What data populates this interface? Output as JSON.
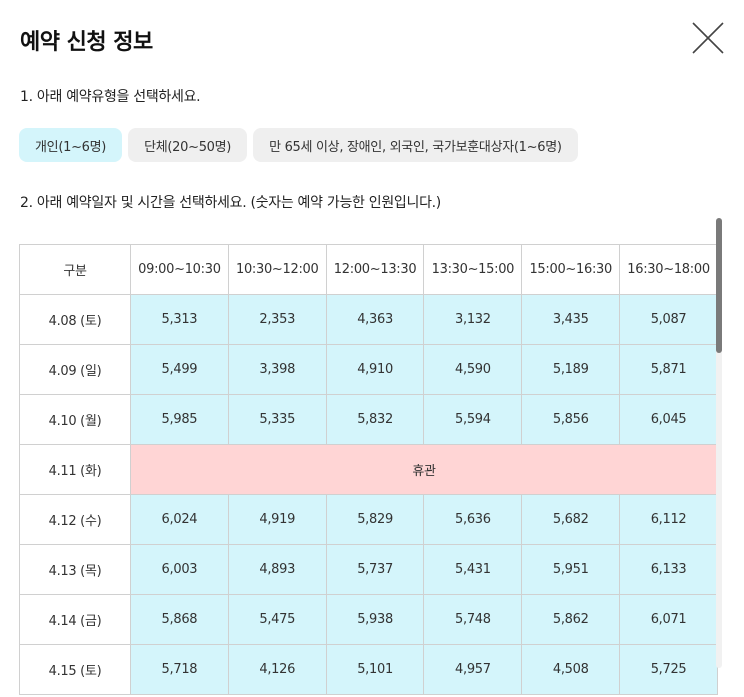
{
  "modal": {
    "title": "예약 신청 정보",
    "close_icon": "close-icon"
  },
  "step1": {
    "label": "1. 아래 예약유형을 선택하세요.",
    "types": [
      {
        "label": "개인(1~6명)",
        "selected": true
      },
      {
        "label": "단체(20~50명)",
        "selected": false
      },
      {
        "label": "만 65세 이상, 장애인, 외국인, 국가보훈대상자(1~6명)",
        "selected": false
      }
    ]
  },
  "step2": {
    "label": "2. 아래 예약일자 및 시간을 선택하세요. (숫자는 예약 가능한 인원입니다.)"
  },
  "table": {
    "corner_header": "구분",
    "time_slots": [
      "09:00~10:30",
      "10:30~12:00",
      "12:00~13:30",
      "13:30~15:00",
      "15:00~16:30",
      "16:30~18:00"
    ],
    "rows": [
      {
        "date": "4.08 (토)",
        "values": [
          "5,313",
          "2,353",
          "4,363",
          "3,132",
          "3,435",
          "5,087"
        ]
      },
      {
        "date": "4.09 (일)",
        "values": [
          "5,499",
          "3,398",
          "4,910",
          "4,590",
          "5,189",
          "5,871"
        ]
      },
      {
        "date": "4.10 (월)",
        "values": [
          "5,985",
          "5,335",
          "5,832",
          "5,594",
          "5,856",
          "6,045"
        ]
      },
      {
        "date": "4.11 (화)",
        "closed_label": "휴관"
      },
      {
        "date": "4.12 (수)",
        "values": [
          "6,024",
          "4,919",
          "5,829",
          "5,636",
          "5,682",
          "6,112"
        ]
      },
      {
        "date": "4.13 (목)",
        "values": [
          "6,003",
          "4,893",
          "5,737",
          "5,431",
          "5,951",
          "6,133"
        ]
      },
      {
        "date": "4.14 (금)",
        "values": [
          "5,868",
          "5,475",
          "5,938",
          "5,748",
          "5,862",
          "6,071"
        ]
      },
      {
        "date": "4.15 (토)",
        "values": [
          "5,718",
          "4,126",
          "5,101",
          "4,957",
          "4,508",
          "5,725"
        ]
      }
    ]
  },
  "colors": {
    "available_cell": "#d4f5fb",
    "closed_cell": "#ffd5d5",
    "selected_type": "#d4f5fb",
    "unselected_type": "#efefef"
  }
}
